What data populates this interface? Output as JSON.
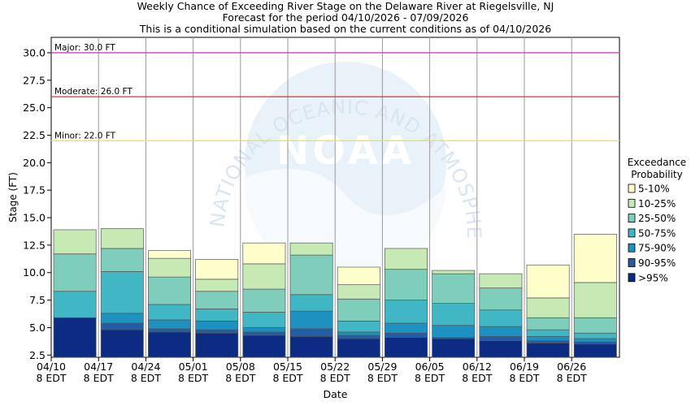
{
  "chart_data": {
    "type": "bar",
    "stacked": true,
    "title": [
      "Weekly Chance of Exceeding River Stage on the Delaware River at Riegelsville, NJ",
      "Forecast for the period 04/10/2026 - 07/09/2026",
      "This is a conditional simulation based on the current conditions as of 04/10/2026"
    ],
    "xlabel": "Date",
    "ylabel": "Stage (FT)",
    "ylim": [
      2.3,
      31.4
    ],
    "yticks": [
      "2.5",
      "5.0",
      "7.5",
      "10.0",
      "12.5",
      "15.0",
      "17.5",
      "20.0",
      "22.5",
      "25.0",
      "27.5",
      "30.0"
    ],
    "xticks": [
      {
        "date": "04/10",
        "tz": "8 EDT"
      },
      {
        "date": "04/17",
        "tz": "8 EDT"
      },
      {
        "date": "04/24",
        "tz": "8 EDT"
      },
      {
        "date": "05/01",
        "tz": "8 EDT"
      },
      {
        "date": "05/08",
        "tz": "8 EDT"
      },
      {
        "date": "05/15",
        "tz": "8 EDT"
      },
      {
        "date": "05/22",
        "tz": "8 EDT"
      },
      {
        "date": "05/29",
        "tz": "8 EDT"
      },
      {
        "date": "06/05",
        "tz": "8 EDT"
      },
      {
        "date": "06/12",
        "tz": "8 EDT"
      },
      {
        "date": "06/19",
        "tz": "8 EDT"
      },
      {
        "date": "06/26",
        "tz": "8 EDT"
      }
    ],
    "thresholds": [
      {
        "label": "Major: 30.0 FT",
        "value": 30.0,
        "color": "#cc44cc"
      },
      {
        "label": "Moderate: 26.0 FT",
        "value": 26.0,
        "color": "#e03030"
      },
      {
        "label": "Minor: 22.0 FT",
        "value": 22.0,
        "color": "#e8e050"
      }
    ],
    "legend": {
      "title": [
        "Exceedance",
        "Probability"
      ],
      "placement": "right",
      "items": [
        {
          "label": "5-10%",
          "color": "#ffffcc"
        },
        {
          "label": "10-25%",
          "color": "#c7e9b4"
        },
        {
          "label": "25-50%",
          "color": "#7fcdbb"
        },
        {
          "label": "50-75%",
          "color": "#41b6c4"
        },
        {
          "label": "75-90%",
          "color": "#1d91c0"
        },
        {
          "label": "90-95%",
          "color": "#225ea8"
        },
        {
          "label": ">95%",
          "color": "#0c2c84"
        }
      ]
    },
    "weeks": [
      {
        "week": "04/10",
        "stages": [
          5.9,
          5.9,
          5.9,
          8.3,
          11.7,
          13.9
        ]
      },
      {
        "week": "04/17",
        "stages": [
          4.8,
          5.4,
          6.3,
          10.1,
          12.2,
          14.0
        ]
      },
      {
        "week": "04/24",
        "stages": [
          4.6,
          4.9,
          5.7,
          7.1,
          9.6,
          11.3,
          12.0
        ]
      },
      {
        "week": "05/01",
        "stages": [
          4.5,
          4.8,
          5.6,
          6.7,
          8.3,
          9.4,
          11.2
        ]
      },
      {
        "week": "05/08",
        "stages": [
          4.3,
          4.6,
          5.0,
          6.4,
          8.5,
          10.8,
          12.7
        ]
      },
      {
        "week": "05/15",
        "stages": [
          4.2,
          4.9,
          6.5,
          8.0,
          11.6,
          12.7
        ]
      },
      {
        "week": "05/22",
        "stages": [
          4.0,
          4.3,
          4.6,
          5.6,
          7.6,
          8.9,
          10.5
        ]
      },
      {
        "week": "05/29",
        "stages": [
          4.1,
          4.5,
          5.4,
          7.5,
          10.3,
          12.2
        ]
      },
      {
        "week": "06/05",
        "stages": [
          4.0,
          4.1,
          5.2,
          7.2,
          9.9,
          10.2
        ]
      },
      {
        "week": "06/12",
        "stages": [
          3.8,
          4.2,
          5.1,
          6.6,
          8.6,
          9.9
        ]
      },
      {
        "week": "06/19",
        "stages": [
          3.6,
          3.8,
          4.2,
          4.8,
          5.9,
          7.7,
          10.7
        ]
      },
      {
        "week": "06/26",
        "stages": [
          3.5,
          3.7,
          4.0,
          4.5,
          5.9,
          9.1,
          13.5
        ]
      }
    ]
  },
  "watermark": {
    "logo_text": "NOAA",
    "ring_text": "NATIONAL OCEANIC AND ATMOSPHERIC ADMINISTRATION"
  }
}
